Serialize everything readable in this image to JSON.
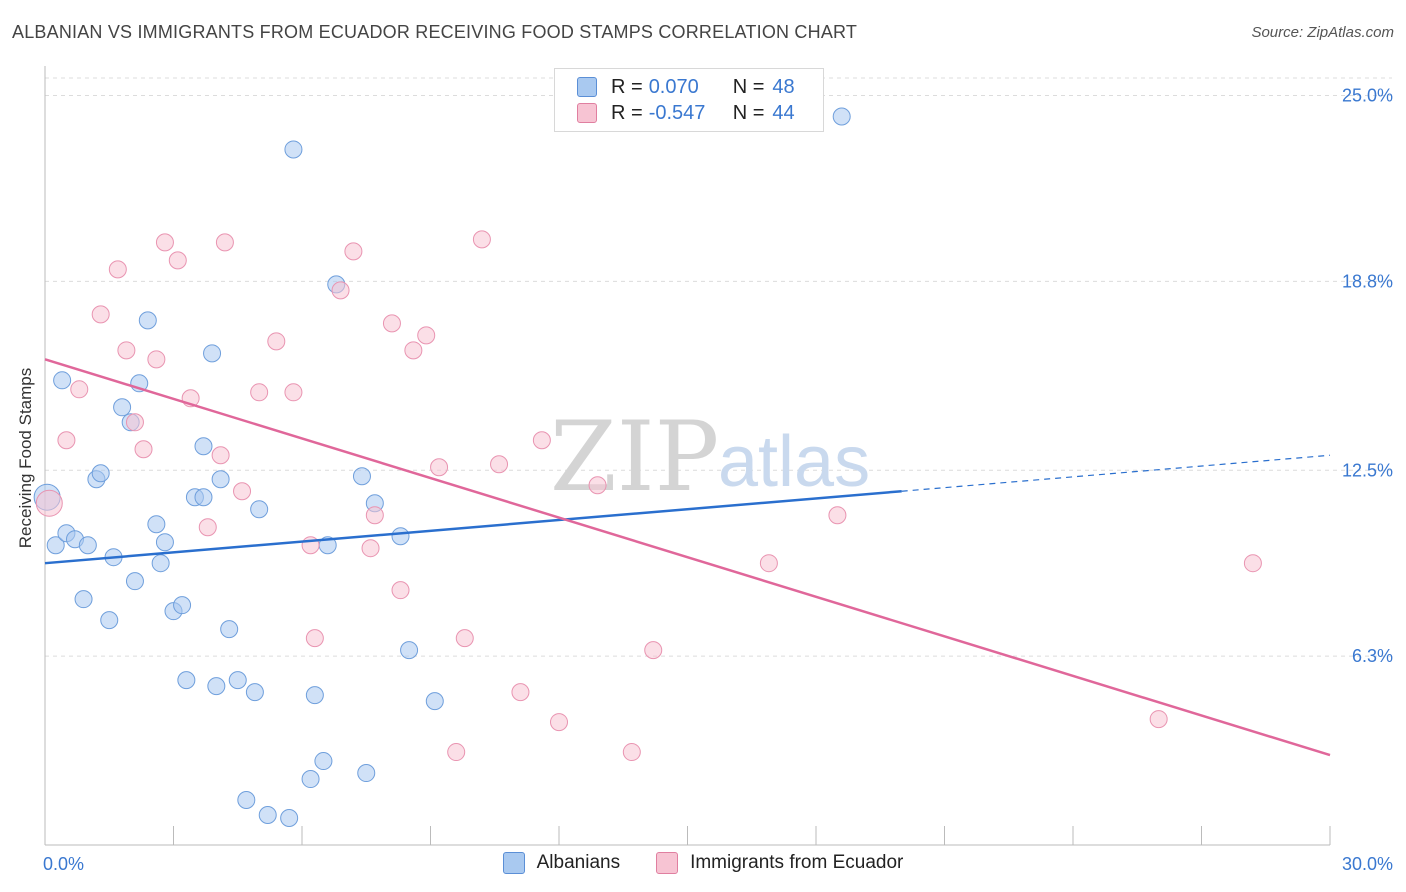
{
  "header": {
    "title": "ALBANIAN VS IMMIGRANTS FROM ECUADOR RECEIVING FOOD STAMPS CORRELATION CHART",
    "source": "Source: ZipAtlas.com"
  },
  "watermark": {
    "zip": "ZIP",
    "atlas": "atlas"
  },
  "legend": {
    "rows": [
      {
        "r_label": "R =",
        "r_value": "0.070",
        "n_label": "N =",
        "n_value": "48",
        "color": "#a9c9f0",
        "border": "#5b8fd6"
      },
      {
        "r_label": "R =",
        "r_value": "-0.547",
        "n_label": "N =",
        "n_value": "44",
        "color": "#f7c4d3",
        "border": "#e07fa0"
      }
    ]
  },
  "bottom_legend": {
    "albanians": "Albanians",
    "ecuador": "Immigrants from Ecuador"
  },
  "chart_data": {
    "type": "scatter",
    "title": "ALBANIAN VS IMMIGRANTS FROM ECUADOR RECEIVING FOOD STAMPS CORRELATION CHART",
    "xlabel": "",
    "ylabel": "Receiving Food Stamps",
    "xlim": [
      0,
      30
    ],
    "ylim": [
      0,
      26
    ],
    "x_tick_labels": [
      "0.0%",
      "30.0%"
    ],
    "y_ticks": [
      6.3,
      12.5,
      18.8,
      25.0
    ],
    "y_tick_labels": [
      "6.3%",
      "12.5%",
      "18.8%",
      "25.0%"
    ],
    "grid": "horizontal dashed",
    "legend_position": "top-center",
    "colors": {
      "albanians": "#7aaae6",
      "albanians_line": "#2a6fce",
      "ecuador": "#f2a7bf",
      "ecuador_line": "#e0679a"
    },
    "series": [
      {
        "name": "Albanians",
        "points": [
          [
            0.05,
            11.6
          ],
          [
            0.25,
            10.0
          ],
          [
            0.4,
            15.5
          ],
          [
            0.5,
            10.4
          ],
          [
            0.7,
            10.2
          ],
          [
            0.9,
            8.2
          ],
          [
            1.0,
            10.0
          ],
          [
            1.2,
            12.2
          ],
          [
            1.3,
            12.4
          ],
          [
            1.5,
            7.5
          ],
          [
            1.6,
            9.6
          ],
          [
            1.8,
            14.6
          ],
          [
            2.0,
            14.1
          ],
          [
            2.1,
            8.8
          ],
          [
            2.2,
            15.4
          ],
          [
            2.4,
            17.5
          ],
          [
            2.6,
            10.7
          ],
          [
            2.7,
            9.4
          ],
          [
            2.8,
            10.1
          ],
          [
            3.0,
            7.8
          ],
          [
            3.2,
            8.0
          ],
          [
            3.3,
            5.5
          ],
          [
            3.5,
            11.6
          ],
          [
            3.7,
            11.6
          ],
          [
            3.7,
            13.3
          ],
          [
            3.9,
            16.4
          ],
          [
            4.0,
            5.3
          ],
          [
            4.1,
            12.2
          ],
          [
            4.3,
            7.2
          ],
          [
            4.5,
            5.5
          ],
          [
            4.7,
            1.5
          ],
          [
            4.9,
            5.1
          ],
          [
            5.0,
            11.2
          ],
          [
            5.2,
            1.0
          ],
          [
            5.7,
            0.9
          ],
          [
            5.8,
            23.2
          ],
          [
            6.2,
            2.2
          ],
          [
            6.3,
            5.0
          ],
          [
            6.5,
            2.8
          ],
          [
            6.6,
            10.0
          ],
          [
            6.8,
            18.7
          ],
          [
            7.4,
            12.3
          ],
          [
            7.5,
            2.4
          ],
          [
            7.7,
            11.4
          ],
          [
            8.3,
            10.3
          ],
          [
            8.5,
            6.5
          ],
          [
            9.1,
            4.8
          ],
          [
            18.6,
            24.3
          ]
        ]
      },
      {
        "name": "Immigrants from Ecuador",
        "points": [
          [
            0.1,
            11.4
          ],
          [
            0.5,
            13.5
          ],
          [
            0.8,
            15.2
          ],
          [
            1.3,
            17.7
          ],
          [
            1.7,
            19.2
          ],
          [
            1.9,
            16.5
          ],
          [
            2.1,
            14.1
          ],
          [
            2.3,
            13.2
          ],
          [
            2.6,
            16.2
          ],
          [
            2.8,
            20.1
          ],
          [
            3.1,
            19.5
          ],
          [
            3.4,
            14.9
          ],
          [
            3.8,
            10.6
          ],
          [
            4.1,
            13.0
          ],
          [
            4.2,
            20.1
          ],
          [
            4.6,
            11.8
          ],
          [
            5.0,
            15.1
          ],
          [
            5.4,
            16.8
          ],
          [
            5.8,
            15.1
          ],
          [
            6.2,
            10.0
          ],
          [
            6.3,
            6.9
          ],
          [
            6.9,
            18.5
          ],
          [
            7.2,
            19.8
          ],
          [
            7.6,
            9.9
          ],
          [
            7.7,
            11.0
          ],
          [
            8.1,
            17.4
          ],
          [
            8.3,
            8.5
          ],
          [
            8.6,
            16.5
          ],
          [
            8.9,
            17.0
          ],
          [
            9.2,
            12.6
          ],
          [
            9.6,
            3.1
          ],
          [
            9.8,
            6.9
          ],
          [
            10.2,
            20.2
          ],
          [
            10.6,
            12.7
          ],
          [
            11.1,
            5.1
          ],
          [
            11.6,
            13.5
          ],
          [
            12.0,
            4.1
          ],
          [
            12.9,
            12.0
          ],
          [
            13.7,
            3.1
          ],
          [
            14.2,
            6.5
          ],
          [
            16.9,
            9.4
          ],
          [
            18.5,
            11.0
          ],
          [
            26.0,
            4.2
          ],
          [
            28.2,
            9.4
          ]
        ]
      }
    ],
    "trend_lines": [
      {
        "series": "Albanians",
        "start": [
          0,
          9.4
        ],
        "solid_end": [
          20.0,
          11.8
        ],
        "dashed_end": [
          30.0,
          13.0
        ]
      },
      {
        "series": "Immigrants from Ecuador",
        "start": [
          0,
          16.2
        ],
        "end": [
          30.0,
          3.0
        ]
      }
    ]
  }
}
